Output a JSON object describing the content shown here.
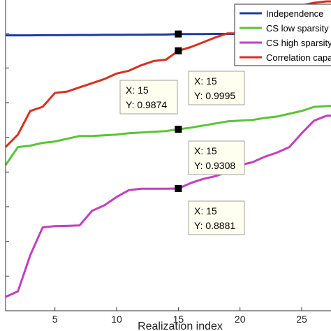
{
  "chart_data": {
    "type": "line",
    "xlabel": "Realization index",
    "ylabel": "",
    "title": "",
    "xlim": [
      1,
      27.6
    ],
    "ylim": [
      0.8,
      1.025
    ],
    "xticks": [
      5,
      10,
      15,
      20,
      25
    ],
    "grid": false,
    "legend_position": "top-right",
    "series": [
      {
        "name": "Independence",
        "color": "#1f3c9b",
        "x": [
          1,
          2,
          3,
          4,
          5,
          6,
          7,
          8,
          9,
          10,
          11,
          12,
          13,
          14,
          15,
          16,
          17,
          18,
          19,
          20,
          21,
          22,
          23,
          24,
          25,
          26,
          27,
          28
        ],
        "y": [
          0.9985,
          0.9985,
          0.9985,
          0.9986,
          0.9986,
          0.9987,
          0.9988,
          0.9988,
          0.9989,
          0.9989,
          0.999,
          0.999,
          0.9991,
          0.9991,
          0.9995,
          0.9995,
          0.9995,
          0.9996,
          0.9996,
          0.9996,
          0.9997,
          0.9997,
          0.9998,
          0.9998,
          0.9999,
          0.9999,
          1.0,
          1.0
        ]
      },
      {
        "name": "CS low sparsity",
        "color": "#5bc435",
        "x": [
          1,
          2,
          3,
          4,
          5,
          6,
          7,
          8,
          9,
          10,
          11,
          12,
          13,
          14,
          15,
          16,
          17,
          18,
          19,
          20,
          21,
          22,
          23,
          24,
          25,
          26,
          27,
          28
        ],
        "y": [
          0.905,
          0.918,
          0.919,
          0.921,
          0.922,
          0.924,
          0.926,
          0.926,
          0.9265,
          0.927,
          0.928,
          0.9285,
          0.929,
          0.9295,
          0.9308,
          0.932,
          0.9335,
          0.935,
          0.9365,
          0.937,
          0.9375,
          0.939,
          0.94,
          0.942,
          0.944,
          0.947,
          0.9475,
          0.948
        ]
      },
      {
        "name": "CS high sparsity",
        "color": "#c23fc0",
        "x": [
          1,
          2,
          3,
          4,
          5,
          6,
          7,
          8,
          9,
          10,
          11,
          12,
          13,
          14,
          15,
          16,
          17,
          18,
          19,
          20,
          21,
          22,
          23,
          24,
          25,
          26,
          27,
          28
        ],
        "y": [
          0.81,
          0.814,
          0.84,
          0.86,
          0.861,
          0.8612,
          0.8615,
          0.872,
          0.876,
          0.882,
          0.887,
          0.888,
          0.888,
          0.888,
          0.8881,
          0.892,
          0.895,
          0.897,
          0.9,
          0.905,
          0.907,
          0.911,
          0.914,
          0.918,
          0.928,
          0.937,
          0.9405,
          0.941
        ]
      },
      {
        "name": "Correlation capacity",
        "color": "#d8301f",
        "x": [
          1,
          2,
          3,
          4,
          5,
          6,
          7,
          8,
          9,
          10,
          11,
          12,
          13,
          14,
          15,
          16,
          17,
          18,
          19,
          20,
          21,
          22,
          23,
          24,
          25,
          26,
          27,
          28
        ],
        "y": [
          0.918,
          0.927,
          0.944,
          0.947,
          0.957,
          0.958,
          0.961,
          0.964,
          0.967,
          0.971,
          0.973,
          0.977,
          0.98,
          0.981,
          0.9874,
          0.99,
          0.9935,
          0.997,
          1.0,
          1.0,
          1.002,
          1.01,
          1.016,
          1.018,
          1.02,
          1.022,
          1.023,
          1.023
        ]
      }
    ],
    "annotations": [
      {
        "x_label": "X: 15",
        "y_label": "Y: 0.9874",
        "x": 15,
        "y": 0.9874
      },
      {
        "x_label": "X: 15",
        "y_label": "Y: 0.9995",
        "x": 15,
        "y": 0.9995
      },
      {
        "x_label": "X: 15",
        "y_label": "Y: 0.9308",
        "x": 15,
        "y": 0.9308
      },
      {
        "x_label": "X: 15",
        "y_label": "Y: 0.8881",
        "x": 15,
        "y": 0.8881
      }
    ]
  }
}
